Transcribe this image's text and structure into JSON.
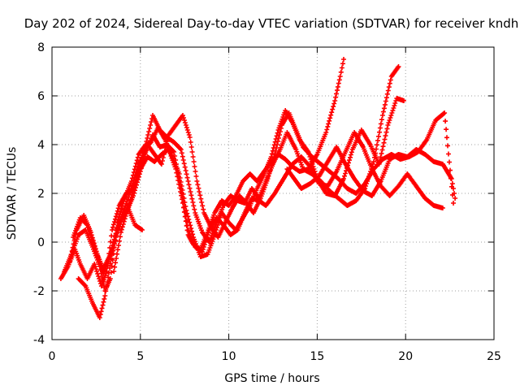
{
  "chart_data": {
    "type": "scatter",
    "title": "Day 202 of 2024, Sidereal Day-to-day VTEC variation (SDTVAR) for receiver kndh",
    "xlabel": "GPS time / hours",
    "ylabel": "SDTVAR / TECUs",
    "xlim": [
      0,
      25
    ],
    "ylim": [
      -4,
      8
    ],
    "xticks": [
      0,
      5,
      10,
      15,
      20,
      25
    ],
    "yticks": [
      -4,
      -2,
      0,
      2,
      4,
      6,
      8
    ],
    "xtick_labels": [
      "0",
      "5",
      "10",
      "15",
      "20",
      "25"
    ],
    "ytick_labels": [
      "-4",
      "-2",
      "0",
      "2",
      "4",
      "6",
      "8"
    ],
    "grid": true,
    "legend": "none",
    "marker": "plus",
    "color": "#ff0000",
    "series": [
      {
        "x": [
          0.5,
          0.9,
          1.3,
          1.6,
          2.0,
          2.4,
          2.8,
          3.1,
          3.4,
          3.8,
          4.2,
          4.6,
          5.0,
          5.4,
          5.8,
          6.2,
          6.6,
          7.0,
          7.4,
          7.7,
          8.0,
          8.4,
          8.8,
          9.2,
          9.6,
          10.0,
          10.4,
          10.8,
          11.2,
          11.6,
          12.0,
          12.4,
          12.8,
          13.2,
          13.6,
          14.0,
          14.5,
          15.0,
          15.5,
          16.0,
          16.3,
          16.5
        ],
        "y": [
          -1.5,
          -1.0,
          -0.3,
          -0.9,
          -1.5,
          -0.9,
          -1.8,
          -1.2,
          0.5,
          1.5,
          2.0,
          2.2,
          3.0,
          3.5,
          3.3,
          3.6,
          3.8,
          3.0,
          1.6,
          0.3,
          -0.1,
          -0.3,
          0.4,
          1.2,
          1.7,
          1.5,
          1.9,
          2.5,
          2.8,
          2.5,
          2.9,
          3.3,
          3.6,
          3.4,
          3.1,
          2.9,
          3.0,
          3.6,
          4.5,
          5.8,
          6.8,
          7.5
        ]
      },
      {
        "x": [
          0.7,
          1.1,
          1.5,
          1.9,
          2.3,
          2.7,
          3.0,
          3.3,
          3.7,
          4.1,
          4.5,
          4.9,
          5.3,
          5.7,
          6.1,
          6.5,
          6.9,
          7.3,
          7.7,
          8.1,
          8.5,
          8.9,
          9.3,
          9.7,
          10.1,
          10.5,
          10.9,
          11.3,
          11.7,
          12.1,
          12.5,
          12.9,
          13.3,
          13.8,
          14.2,
          14.7,
          15.2,
          15.7,
          16.2,
          16.7,
          17.2,
          17.7,
          18.2,
          18.7,
          19.2,
          19.6
        ],
        "y": [
          -1.2,
          -0.5,
          0.3,
          0.5,
          -0.2,
          -1.0,
          -2.0,
          -1.5,
          0.8,
          1.8,
          2.5,
          3.6,
          4.0,
          5.2,
          4.6,
          4.3,
          4.1,
          3.8,
          2.5,
          1.2,
          0.4,
          0.0,
          0.8,
          1.5,
          1.9,
          1.7,
          1.6,
          2.2,
          1.8,
          2.5,
          3.2,
          3.8,
          4.5,
          3.8,
          3.0,
          2.8,
          2.5,
          2.1,
          1.8,
          1.5,
          1.7,
          2.2,
          3.3,
          5.2,
          6.8,
          7.2
        ]
      },
      {
        "x": [
          1.0,
          1.4,
          1.8,
          2.2,
          2.6,
          2.9,
          3.2,
          3.6,
          4.0,
          4.4,
          4.8,
          5.2,
          5.6,
          6.0,
          6.4,
          6.8,
          7.2,
          7.6,
          8.0,
          8.4,
          8.8,
          9.2,
          9.6,
          10.0,
          10.4,
          10.8,
          11.2,
          11.6,
          12.0,
          12.4,
          12.8,
          13.2,
          13.6,
          14.0,
          14.5,
          15.0,
          15.5,
          16.0,
          16.5,
          17.0,
          17.5,
          18.0,
          18.5,
          19.0,
          19.5,
          19.9
        ],
        "y": [
          -0.8,
          0.5,
          1.1,
          0.4,
          -0.6,
          -1.3,
          -0.8,
          0.2,
          1.0,
          1.6,
          2.7,
          3.8,
          4.1,
          4.7,
          4.2,
          3.5,
          2.8,
          1.3,
          0.2,
          -0.6,
          -0.5,
          0.3,
          1.2,
          0.8,
          0.5,
          1.0,
          1.5,
          2.2,
          2.8,
          3.5,
          4.6,
          5.4,
          4.9,
          4.2,
          3.7,
          2.6,
          2.0,
          1.9,
          2.6,
          3.8,
          4.6,
          4.0,
          3.2,
          4.8,
          5.9,
          5.8
        ]
      },
      {
        "x": [
          1.2,
          1.6,
          2.0,
          2.5,
          2.9,
          3.3,
          3.7,
          4.1,
          4.5,
          4.9,
          5.3,
          5.7,
          6.1,
          6.5,
          6.9,
          7.3,
          7.7,
          8.1,
          8.5,
          8.9,
          9.3,
          9.7,
          10.1,
          10.5,
          10.9,
          11.3,
          11.7,
          12.1,
          12.6,
          13.1,
          13.6,
          14.1,
          14.6,
          15.1,
          15.6,
          16.1,
          16.6,
          17.1,
          17.6,
          18.1,
          18.6,
          19.1,
          19.6,
          20.1,
          20.6,
          21.1,
          21.6,
          22.1
        ],
        "y": [
          0.2,
          1.0,
          0.7,
          -0.4,
          -1.1,
          -0.5,
          0.6,
          1.4,
          2.2,
          3.2,
          3.7,
          4.4,
          3.9,
          4.0,
          3.7,
          2.2,
          0.5,
          -0.2,
          -0.4,
          0.5,
          1.0,
          0.7,
          0.3,
          0.5,
          1.2,
          1.8,
          1.7,
          1.5,
          2.0,
          2.6,
          3.2,
          3.5,
          3.1,
          2.4,
          2.3,
          2.9,
          3.7,
          4.5,
          3.9,
          3.0,
          2.3,
          1.9,
          2.3,
          2.8,
          2.3,
          1.8,
          1.5,
          1.4
        ]
      },
      {
        "x": [
          1.5,
          1.9,
          2.3,
          2.7,
          3.0,
          3.4,
          3.8,
          4.2,
          4.6,
          5.0,
          5.4,
          5.8,
          6.2,
          6.6,
          7.0,
          7.4,
          7.8,
          8.2,
          8.6,
          9.0,
          9.4,
          9.8,
          10.2,
          10.6,
          11.0,
          11.4,
          11.8,
          12.2,
          12.6,
          13.0,
          13.4,
          13.8,
          14.2,
          14.7,
          15.2,
          15.7,
          16.2,
          16.7,
          17.2,
          17.7,
          18.2,
          18.7,
          19.2,
          19.7,
          20.2,
          20.7,
          21.2,
          21.7,
          22.2,
          22.7
        ],
        "y": [
          -1.5,
          -1.8,
          -2.5,
          -3.1,
          -2.2,
          -0.5,
          0.8,
          1.2,
          1.9,
          2.9,
          4.0,
          3.6,
          3.2,
          4.4,
          4.8,
          5.2,
          4.3,
          2.5,
          1.2,
          0.6,
          0.2,
          0.8,
          1.4,
          1.9,
          1.6,
          1.2,
          1.8,
          2.6,
          3.6,
          4.8,
          5.3,
          4.6,
          3.9,
          3.5,
          3.2,
          2.9,
          2.6,
          2.2,
          2.0,
          2.4,
          3.0,
          3.4,
          3.6,
          3.4,
          3.5,
          3.7,
          4.2,
          5.0,
          5.3,
          1.6
        ]
      },
      {
        "x": [
          13.3,
          13.7,
          14.1,
          14.6,
          15.1,
          15.6,
          16.1,
          16.6,
          17.1,
          17.6,
          18.1,
          18.6,
          19.1,
          19.6,
          20.1,
          20.6,
          21.1,
          21.6,
          22.1,
          22.6,
          22.8
        ],
        "y": [
          3.0,
          2.6,
          2.2,
          2.4,
          2.7,
          3.3,
          3.9,
          3.2,
          2.6,
          2.1,
          1.9,
          2.5,
          3.4,
          3.6,
          3.5,
          3.8,
          3.6,
          3.3,
          3.2,
          2.6,
          1.8
        ]
      },
      {
        "x": [
          3.5,
          3.9,
          4.3,
          4.7,
          5.1
        ],
        "y": [
          -1.2,
          0.4,
          1.4,
          0.7,
          0.5
        ]
      }
    ]
  }
}
